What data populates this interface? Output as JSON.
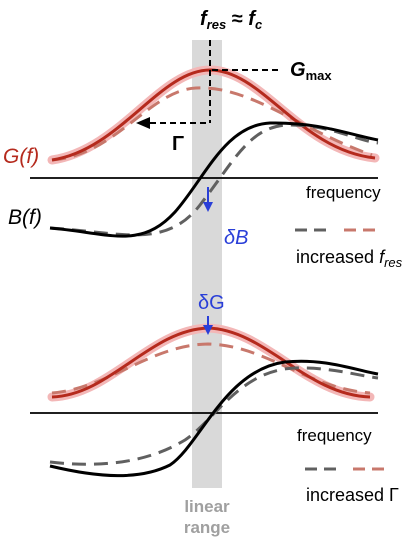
{
  "labels": {
    "fres_f": "f",
    "fres_sub": "res",
    "approx": " ≈ ",
    "fc_f": "f",
    "fc_sub": "c",
    "gmax_g": "G",
    "gmax_sub": "max",
    "gamma_top": "Γ",
    "g_of_f": "G(f)",
    "b_of_f": "B(f)",
    "frequency_top": "frequency",
    "frequency_bottom": "frequency",
    "delta_b": "δB",
    "delta_g": "δG",
    "increased_fres_prefix": "increased ",
    "increased_fres_f": "f",
    "increased_fres_sub": "res",
    "increased_gamma": "increased Γ",
    "linear_range_1": "linear",
    "linear_range_2": "range"
  },
  "colors": {
    "conductance": "#b52a1d",
    "conductance_glow": "#f3b7b7",
    "shifted_conductance": "#c8786c",
    "susceptance": "#000000",
    "shifted_susceptance": "#606060",
    "annotation_blue": "#2a3fd8",
    "linear_band": "#d9d9d9",
    "linear_text": "#a0a0a0"
  }
}
